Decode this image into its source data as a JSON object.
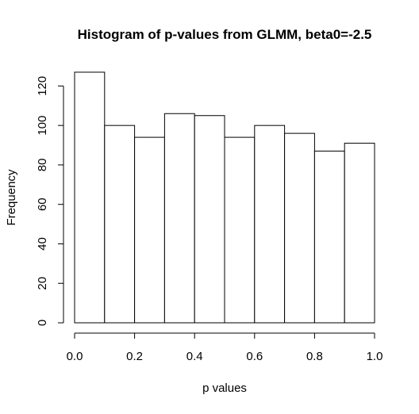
{
  "chart_data": {
    "type": "bar",
    "title": "Histogram of p-values from GLMM, beta0=-2.5",
    "xlabel": "p values",
    "ylabel": "Frequency",
    "bins": [
      {
        "start": 0.0,
        "end": 0.1,
        "value": 127
      },
      {
        "start": 0.1,
        "end": 0.2,
        "value": 100
      },
      {
        "start": 0.2,
        "end": 0.3,
        "value": 94
      },
      {
        "start": 0.3,
        "end": 0.4,
        "value": 106
      },
      {
        "start": 0.4,
        "end": 0.5,
        "value": 105
      },
      {
        "start": 0.5,
        "end": 0.6,
        "value": 94
      },
      {
        "start": 0.6,
        "end": 0.7,
        "value": 100
      },
      {
        "start": 0.7,
        "end": 0.8,
        "value": 96
      },
      {
        "start": 0.8,
        "end": 0.9,
        "value": 87
      },
      {
        "start": 0.9,
        "end": 1.0,
        "value": 91
      }
    ],
    "xlim": [
      0.0,
      1.0
    ],
    "ylim": [
      0,
      127
    ],
    "x_ticks": [
      {
        "value": 0.0,
        "label": "0.0"
      },
      {
        "value": 0.2,
        "label": "0.2"
      },
      {
        "value": 0.4,
        "label": "0.4"
      },
      {
        "value": 0.6,
        "label": "0.6"
      },
      {
        "value": 0.8,
        "label": "0.8"
      },
      {
        "value": 1.0,
        "label": "1.0"
      }
    ],
    "y_ticks": [
      {
        "value": 0,
        "label": "0"
      },
      {
        "value": 20,
        "label": "20"
      },
      {
        "value": 40,
        "label": "40"
      },
      {
        "value": 60,
        "label": "60"
      },
      {
        "value": 80,
        "label": "80"
      },
      {
        "value": 100,
        "label": "100"
      },
      {
        "value": 120,
        "label": "120"
      }
    ],
    "grid": false,
    "bar_fill": "#ffffff",
    "bar_stroke": "#000000"
  }
}
